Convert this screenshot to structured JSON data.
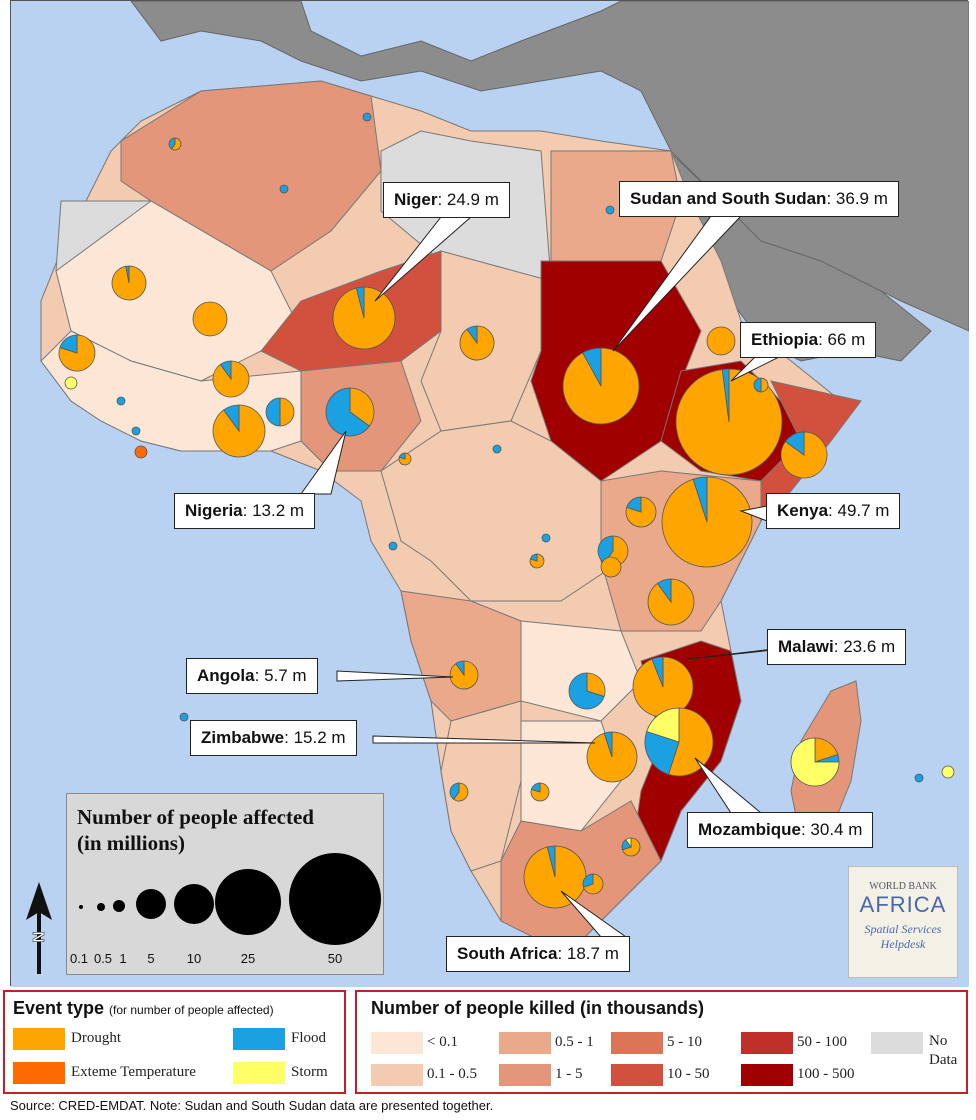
{
  "callouts": [
    {
      "name": "Niger",
      "value": "24.9 m"
    },
    {
      "name": "Sudan and South Sudan",
      "value": "36.9 m"
    },
    {
      "name": "Ethiopia",
      "value": "66 m"
    },
    {
      "name": "Nigeria",
      "value": "13.2 m"
    },
    {
      "name": "Kenya",
      "value": "49.7 m"
    },
    {
      "name": "Malawi",
      "value": "23.6 m"
    },
    {
      "name": "Angola",
      "value": "5.7 m"
    },
    {
      "name": "Zimbabwe",
      "value": "15.2 m"
    },
    {
      "name": "Mozambique",
      "value": "30.4 m"
    },
    {
      "name": "South Africa",
      "value": "18.7 m"
    }
  ],
  "size_legend": {
    "title_line1": "Number of people affected",
    "title_line2": "(in millions)",
    "labels": [
      "0.1",
      "0.5",
      "1",
      "5",
      "10",
      "25",
      "50"
    ]
  },
  "event_legend": {
    "title": "Event type",
    "subtitle": "(for number of people affected)",
    "items": [
      {
        "label": "Drought",
        "color": "#FFA500"
      },
      {
        "label": "Flood",
        "color": "#1BA1E2"
      },
      {
        "label": "Exteme Temperature",
        "color": "#FF6A00"
      },
      {
        "label": "Storm",
        "color": "#FFFF66"
      }
    ]
  },
  "killed_legend": {
    "title": "Number of people killed (in thousands)",
    "items": [
      {
        "label": "< 0.1",
        "color": "#FCE7D6"
      },
      {
        "label": "0.1 - 0.5",
        "color": "#F2CBB0"
      },
      {
        "label": "0.5 - 1",
        "color": "#E9A98A"
      },
      {
        "label": "1 - 5",
        "color": "#E3967A"
      },
      {
        "label": "5 - 10",
        "color": "#DC7458"
      },
      {
        "label": "10 - 50",
        "color": "#D2503E"
      },
      {
        "label": "50 - 100",
        "color": "#C0302A"
      },
      {
        "label": "100 - 500",
        "color": "#A00000"
      },
      {
        "label": "No Data",
        "color": "#DCDCDC"
      }
    ]
  },
  "north_label": "N",
  "logo": {
    "line1": "WORLD BANK",
    "line2": "AFRICA",
    "line3": "Spatial Services",
    "line4": "Helpdesk"
  },
  "footer": "Source: CRED-EMDAT. Note: Sudan and South Sudan data are presented together.",
  "colors": {
    "ocean": "#B9D2F2",
    "other_land": "#8C8C8C",
    "drought": "#FFA500",
    "flood": "#1BA1E2",
    "storm": "#FFFF66",
    "extreme_temperature": "#FF6A00"
  }
}
